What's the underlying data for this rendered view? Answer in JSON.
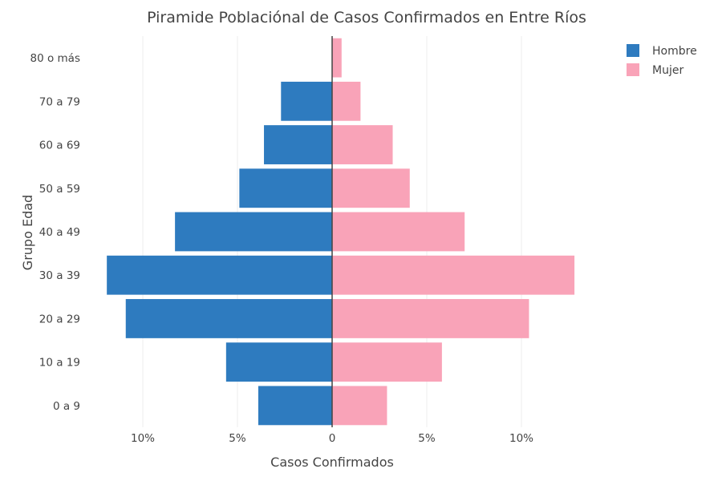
{
  "chart_data": {
    "type": "bar",
    "orientation": "horizontal",
    "layout": "population-pyramid",
    "title": "Piramide Poblaciónal de Casos Confirmados en Entre Ríos",
    "xlabel": "Casos Confirmados",
    "ylabel": "Grupo Edad",
    "categories": [
      "0 a 9",
      "10 a 19",
      "20 a 29",
      "30 a 39",
      "40 a 49",
      "50 a 59",
      "60 a 69",
      "70 a 79",
      "80 o más"
    ],
    "x_ticks": [
      {
        "value": -10,
        "label": "10%"
      },
      {
        "value": -5,
        "label": "5%"
      },
      {
        "value": 0,
        "label": "0"
      },
      {
        "value": 5,
        "label": "5%"
      },
      {
        "value": 10,
        "label": "10%"
      }
    ],
    "xlim": [
      -13,
      13
    ],
    "grid": true,
    "legend_position": "top-right",
    "series": [
      {
        "name": "Hombre",
        "color": "#2e7bbf",
        "side": "left",
        "values": [
          3.9,
          5.6,
          10.9,
          11.9,
          8.3,
          4.9,
          3.6,
          2.7,
          0
        ]
      },
      {
        "name": "Mujer",
        "color": "#f9a3b8",
        "side": "right",
        "values": [
          2.9,
          5.8,
          10.4,
          12.8,
          7.0,
          4.1,
          3.2,
          1.5,
          0.5
        ]
      }
    ]
  }
}
